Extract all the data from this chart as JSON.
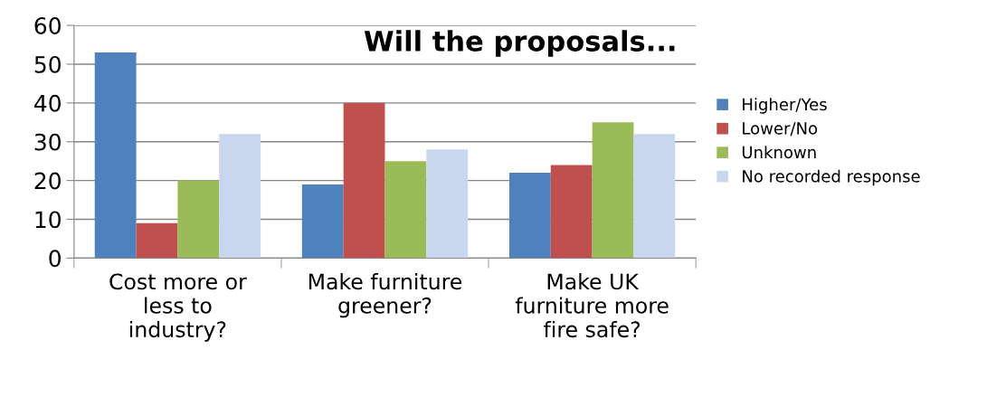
{
  "chart_data": {
    "type": "bar",
    "title": "Will the proposals...",
    "categories": [
      "Cost more or\nless to\nindustry?",
      "Make furniture\ngreener?",
      "Make UK\nfurniture more\nfire safe?"
    ],
    "series": [
      {
        "name": "Higher/Yes",
        "color": "#4f81bd",
        "values": [
          53,
          19,
          22
        ]
      },
      {
        "name": "Lower/No",
        "color": "#c0504d",
        "values": [
          9,
          40,
          24
        ]
      },
      {
        "name": "Unknown",
        "color": "#9bbb59",
        "values": [
          20,
          25,
          35
        ]
      },
      {
        "name": "No recorded response",
        "color": "#c9d7ee",
        "values": [
          32,
          28,
          32
        ]
      }
    ],
    "ylim": [
      0,
      60
    ],
    "yticks": [
      0,
      10,
      20,
      30,
      40,
      50,
      60
    ],
    "grid": "y",
    "legend": "right"
  }
}
